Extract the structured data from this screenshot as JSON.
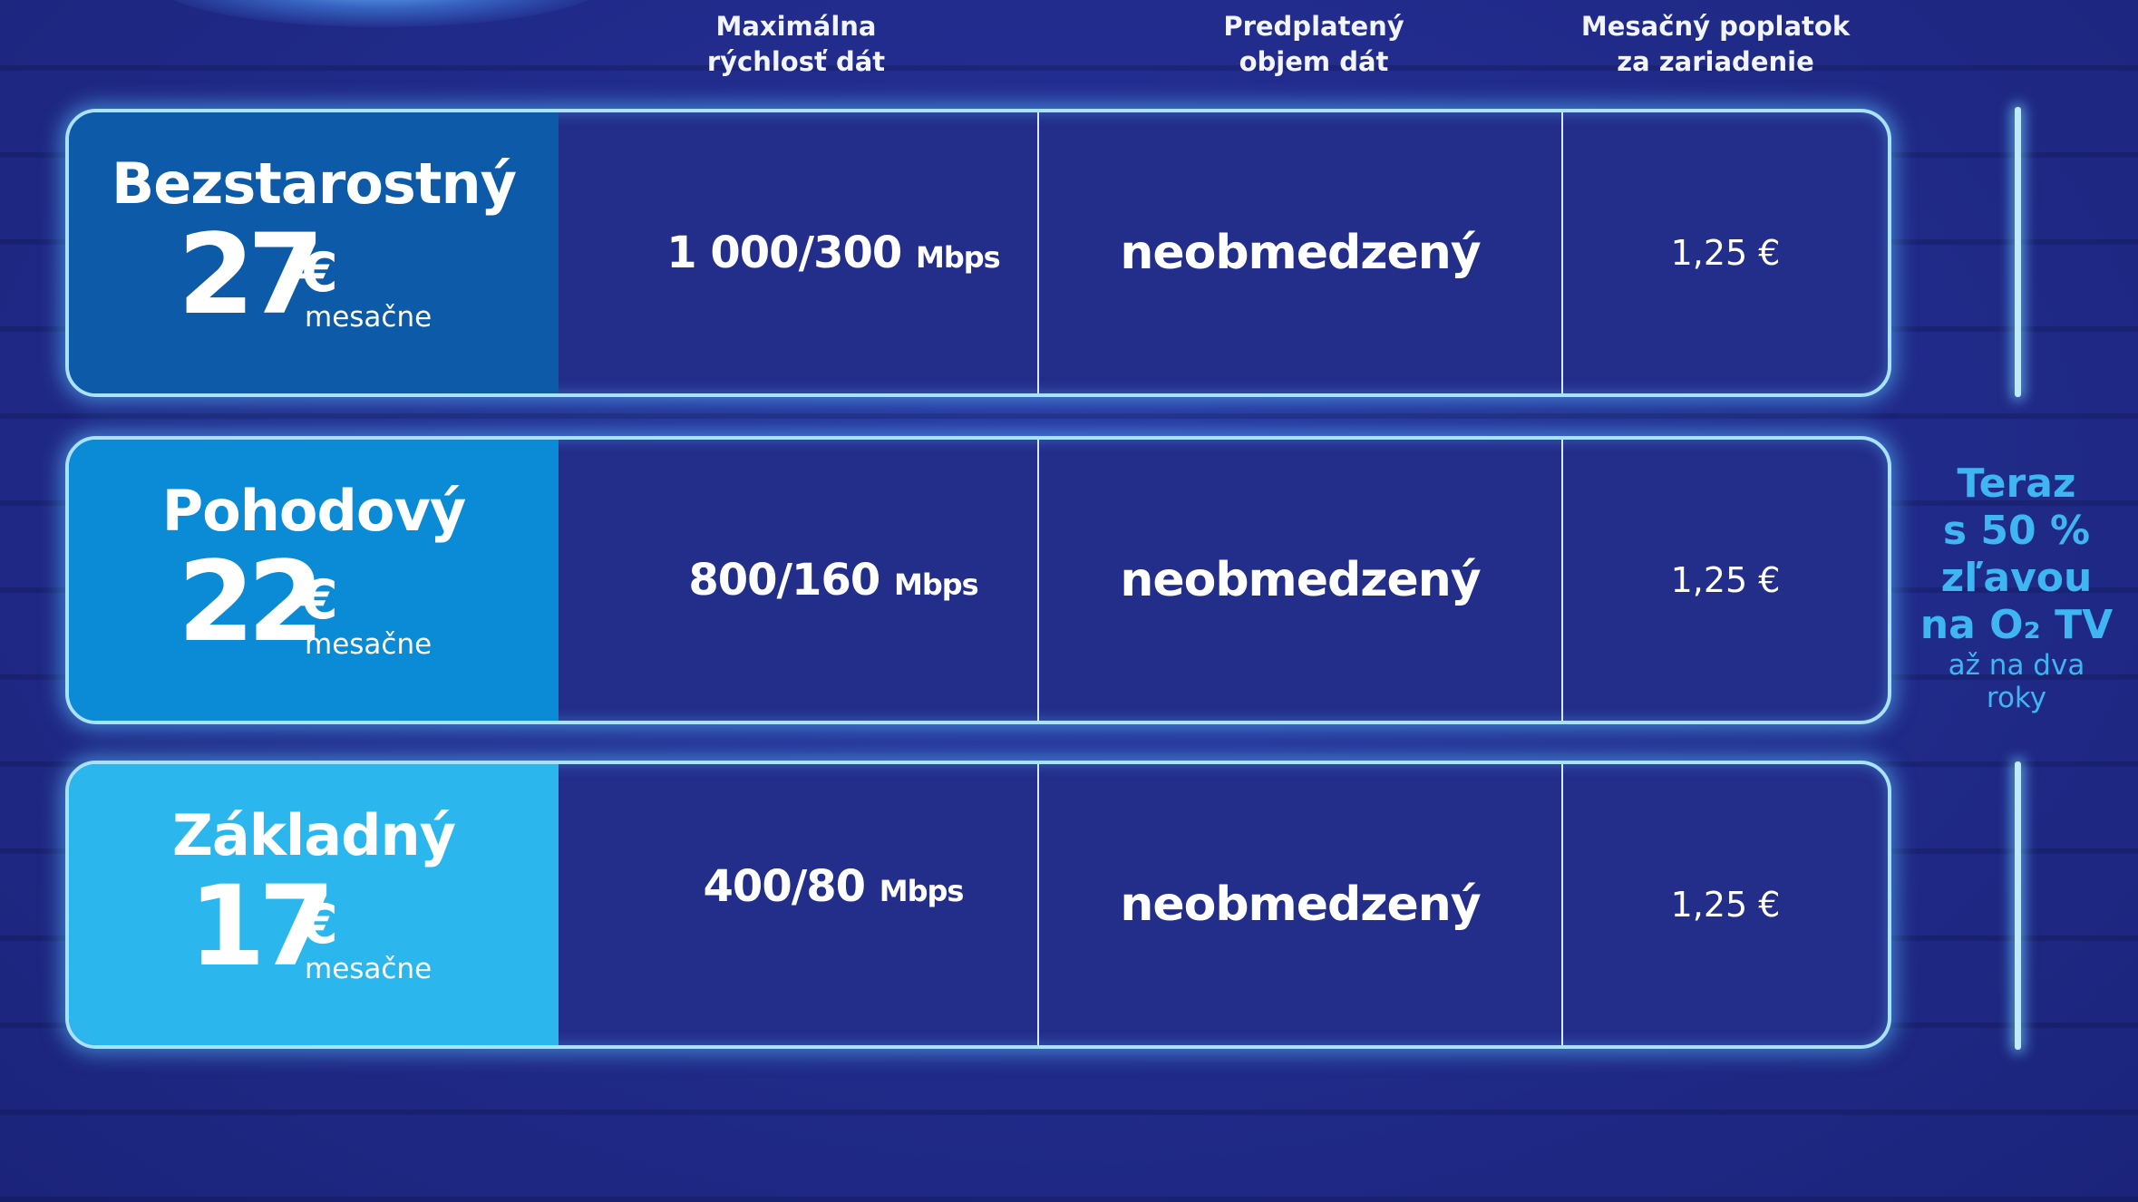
{
  "columns": {
    "speed": [
      "Maximálna",
      "rýchlosť dát"
    ],
    "volume": [
      "Predplatený",
      "objem dát"
    ],
    "fee": [
      "Mesačný poplatok",
      "za zariadenie"
    ]
  },
  "plans": [
    {
      "name": "Bezstarostný",
      "price": "27",
      "currency": "€",
      "period": "mesačne",
      "speed": "1 000/300",
      "speed_unit": "Mbps",
      "volume": "neobmedzený",
      "fee": "1,25 €",
      "color": "#0c5aa8"
    },
    {
      "name": "Pohodový",
      "price": "22",
      "currency": "€",
      "period": "mesačne",
      "speed": "800/160",
      "speed_unit": "Mbps",
      "volume": "neobmedzený",
      "fee": "1,25 €",
      "color": "#0b8ad6"
    },
    {
      "name": "Základný",
      "price": "17",
      "currency": "€",
      "period": "mesačne",
      "speed": "400/80",
      "speed_unit": "Mbps",
      "volume": "neobmedzený",
      "fee": "1,25 €",
      "color": "#2bb7ee"
    }
  ],
  "promo": {
    "lines": [
      "Teraz",
      "s 50 %",
      "zľavou",
      "na O₂ TV"
    ],
    "small": [
      "až na dva",
      "roky"
    ],
    "color": "#3fb6f2"
  }
}
